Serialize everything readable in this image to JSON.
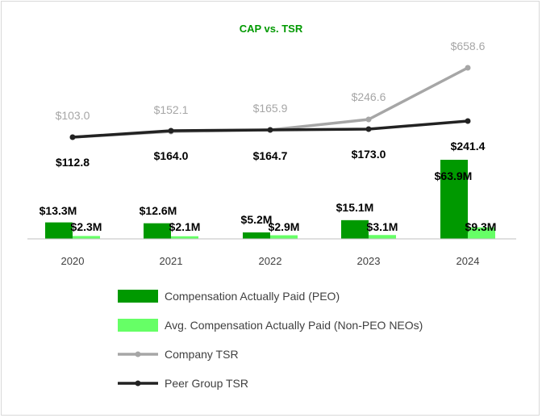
{
  "chart_data": {
    "type": "bar",
    "title": "CAP vs. TSR",
    "categories": [
      "2020",
      "2021",
      "2022",
      "2023",
      "2024"
    ],
    "series": [
      {
        "name": "Compensation Actually Paid (PEO)",
        "kind": "bar",
        "color": "#009900",
        "values": [
          13.3,
          12.6,
          5.2,
          15.1,
          63.9
        ],
        "labels": [
          "$13.3M",
          "$12.6M",
          "$5.2M",
          "$15.1M",
          "$63.9M"
        ]
      },
      {
        "name": "Avg. Compensation Actually Paid (Non-PEO NEOs)",
        "kind": "bar",
        "color": "#66ff66",
        "values": [
          2.3,
          2.1,
          2.9,
          3.1,
          9.3
        ],
        "labels": [
          "$2.3M",
          "$2.1M",
          "$2.9M",
          "$3.1M",
          "$9.3M"
        ]
      },
      {
        "name": "Company TSR",
        "kind": "line",
        "color": "#a6a6a6",
        "values": [
          103.0,
          152.1,
          165.9,
          246.6,
          658.6
        ],
        "labels": [
          "$103.0",
          "$152.1",
          "$165.9",
          "$246.6",
          "$658.6"
        ]
      },
      {
        "name": "Peer Group TSR",
        "kind": "line",
        "color": "#222222",
        "values": [
          112.8,
          164.0,
          164.7,
          173.0,
          241.4
        ],
        "labels": [
          "$112.8",
          "$164.0",
          "$164.7",
          "$173.0",
          "$241.4"
        ]
      }
    ],
    "bar_ylim": [
      0,
      70
    ],
    "line_ylim": [
      0,
      700
    ],
    "legend": "bottom"
  }
}
